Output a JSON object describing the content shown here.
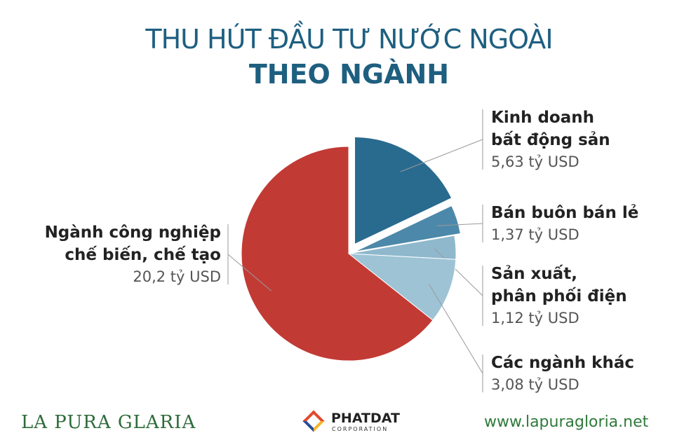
{
  "chart_data": {
    "type": "pie",
    "title": "THU HÚT ĐẦU TƯ NƯỚC NGOÀI",
    "subtitle": "THEO NGÀNH",
    "categories": [
      "Kinh doanh\nbất động sản",
      "Bán buôn bán lẻ",
      "Sản xuất,\nphân phối điện",
      "Các ngành khác",
      "Ngành công nghiệp\nchế biến, chế tạo"
    ],
    "values": [
      5.63,
      1.37,
      1.12,
      3.08,
      20.2
    ],
    "value_labels": [
      "5,63 tỷ USD",
      "1,37 tỷ USD",
      "1,12 tỷ USD",
      "3,08 tỷ USD",
      "20,2 tỷ USD"
    ],
    "colors": [
      "#296a8f",
      "#4c88a9",
      "#8fb8cd",
      "#9dc3d5",
      "#c23a34"
    ],
    "explode": [
      true,
      true,
      false,
      false,
      false
    ]
  },
  "footer": {
    "brand": "LA PURA GLARIA",
    "logo_name": "PHATDAT",
    "logo_sub": "CORPORATION",
    "website": "www.lapuragloria.net"
  }
}
